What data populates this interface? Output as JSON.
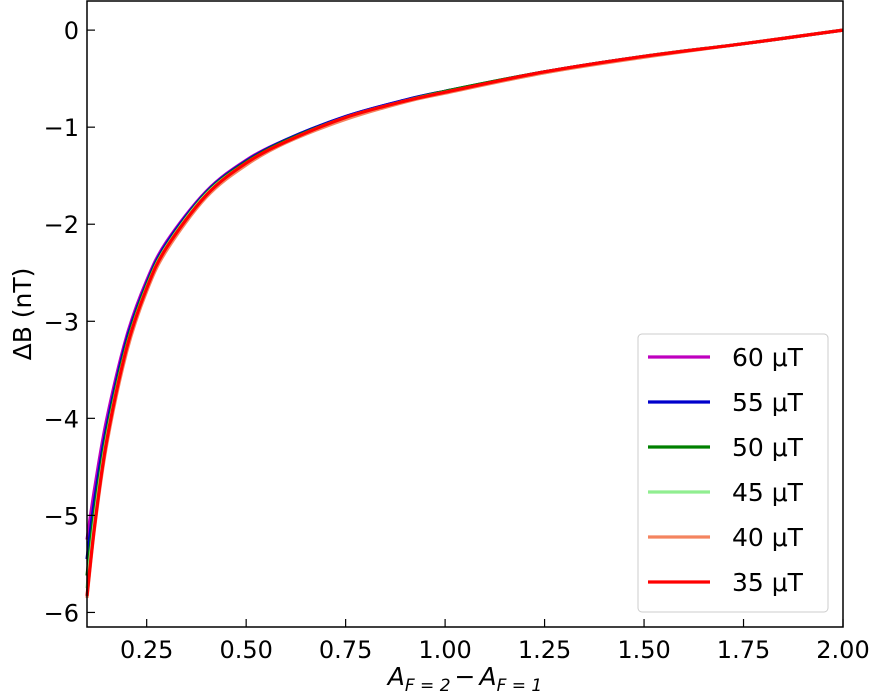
{
  "chart_data": {
    "type": "line",
    "title": "",
    "xlabel": "A_{F=2} − A_{F=1}",
    "xlabel_parts": {
      "a": "A",
      "sub1": "F = 2",
      "minus": "−",
      "b": "A",
      "sub2": "F = 1"
    },
    "ylabel": "ΔB (nT)",
    "xlim": [
      0.1,
      2.0
    ],
    "ylim": [
      -6.15,
      0.3
    ],
    "grid": false,
    "legend_position": "bottom-right",
    "xticks": [
      {
        "value": 0.25,
        "label": "0.25"
      },
      {
        "value": 0.5,
        "label": "0.50"
      },
      {
        "value": 0.75,
        "label": "0.75"
      },
      {
        "value": 1.0,
        "label": "1.00"
      },
      {
        "value": 1.25,
        "label": "1.25"
      },
      {
        "value": 1.5,
        "label": "1.50"
      },
      {
        "value": 1.75,
        "label": "1.75"
      },
      {
        "value": 2.0,
        "label": "2.00"
      }
    ],
    "yticks": [
      {
        "value": 0,
        "label": "0"
      },
      {
        "value": -1,
        "label": "−1"
      },
      {
        "value": -2,
        "label": "−2"
      },
      {
        "value": -3,
        "label": "−3"
      },
      {
        "value": -4,
        "label": "−4"
      },
      {
        "value": -5,
        "label": "−5"
      },
      {
        "value": -6,
        "label": "−6"
      }
    ],
    "x": [
      0.1,
      0.12,
      0.15,
      0.2,
      0.25,
      0.3,
      0.4,
      0.5,
      0.6,
      0.75,
      0.9,
      1.0,
      1.25,
      1.5,
      1.75,
      2.0
    ],
    "series": [
      {
        "name": "60 μT",
        "color": "#bf00bf",
        "values": [
          -5.25,
          -4.7,
          -4.0,
          -3.15,
          -2.58,
          -2.18,
          -1.66,
          -1.34,
          -1.13,
          -0.89,
          -0.72,
          -0.63,
          -0.43,
          -0.27,
          -0.14,
          0.0
        ]
      },
      {
        "name": "55 μT",
        "color": "#0000cc",
        "values": [
          -5.45,
          -4.82,
          -4.08,
          -3.19,
          -2.61,
          -2.2,
          -1.67,
          -1.35,
          -1.13,
          -0.89,
          -0.72,
          -0.63,
          -0.43,
          -0.27,
          -0.14,
          0.0
        ]
      },
      {
        "name": "50 μT",
        "color": "#008000",
        "values": [
          -5.62,
          -4.93,
          -4.14,
          -3.23,
          -2.63,
          -2.22,
          -1.68,
          -1.36,
          -1.14,
          -0.9,
          -0.73,
          -0.63,
          -0.43,
          -0.27,
          -0.14,
          0.0
        ]
      },
      {
        "name": "45 μT",
        "color": "#90ee90",
        "values": [
          -5.75,
          -5.02,
          -4.19,
          -3.26,
          -2.65,
          -2.23,
          -1.69,
          -1.37,
          -1.15,
          -0.9,
          -0.73,
          -0.64,
          -0.44,
          -0.27,
          -0.14,
          0.0
        ]
      },
      {
        "name": "40 μT",
        "color": "#f4845f",
        "values": [
          -5.85,
          -5.1,
          -4.26,
          -3.31,
          -2.69,
          -2.27,
          -1.72,
          -1.39,
          -1.16,
          -0.92,
          -0.74,
          -0.65,
          -0.44,
          -0.28,
          -0.14,
          0.0
        ]
      },
      {
        "name": "35 μT",
        "color": "#ff0000",
        "values": [
          -5.83,
          -5.08,
          -4.22,
          -3.27,
          -2.66,
          -2.24,
          -1.7,
          -1.37,
          -1.15,
          -0.9,
          -0.73,
          -0.64,
          -0.43,
          -0.27,
          -0.14,
          0.0
        ]
      }
    ]
  }
}
